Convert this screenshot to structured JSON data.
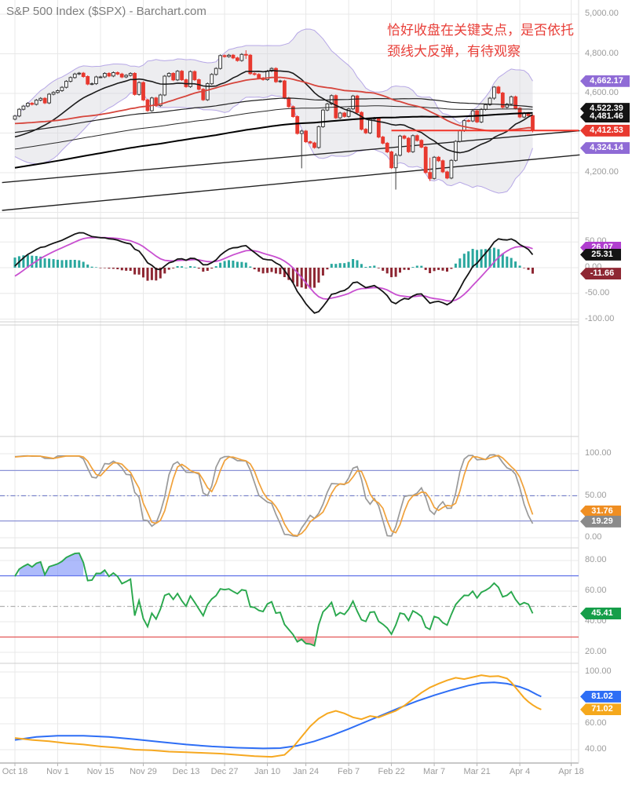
{
  "title": "S&P 500 Index ($SPX) - Barchart.com",
  "annotation": {
    "line1": "恰好收盘在关键支点，是否依托",
    "line2": "颈线大反弹，有待观察",
    "color": "#e8403a"
  },
  "x_axis": {
    "ticks": [
      {
        "label": "Oct 18",
        "i": 0
      },
      {
        "label": "Nov 1",
        "i": 10
      },
      {
        "label": "Nov 15",
        "i": 20
      },
      {
        "label": "Nov 29",
        "i": 30
      },
      {
        "label": "Dec 13",
        "i": 40
      },
      {
        "label": "Dec 27",
        "i": 49
      },
      {
        "label": "Jan 10",
        "i": 59
      },
      {
        "label": "Jan 24",
        "i": 68
      },
      {
        "label": "Feb 7",
        "i": 78
      },
      {
        "label": "Feb 22",
        "i": 88
      },
      {
        "label": "Mar 7",
        "i": 98
      },
      {
        "label": "Mar 21",
        "i": 108
      },
      {
        "label": "Apr 4",
        "i": 118
      },
      {
        "label": "Apr 18",
        "i": 130
      }
    ]
  },
  "chart_data": {
    "type": "multi-panel-technical-chart",
    "symbol": "$SPX",
    "panels": {
      "price": {
        "type": "candlestick",
        "y_ticks": [
          {
            "v": 5000,
            "label": "5,000.00"
          },
          {
            "v": 4800,
            "label": "4,800.00"
          },
          {
            "v": 4600,
            "label": "4,600.00"
          },
          {
            "v": 4200,
            "label": "4,200.00"
          }
        ],
        "grid_values": [
          5000,
          4800,
          4600,
          4400,
          4200,
          4000
        ],
        "closes": [
          4486,
          4520,
          4536,
          4550,
          4545,
          4566,
          4575,
          4552,
          4596,
          4605,
          4614,
          4631,
          4661,
          4680,
          4698,
          4702,
          4685,
          4647,
          4649,
          4683,
          4683,
          4701,
          4688,
          4705,
          4698,
          4683,
          4691,
          4701,
          4595,
          4655,
          4567,
          4513,
          4577,
          4538,
          4592,
          4687,
          4701,
          4668,
          4712,
          4669,
          4634,
          4710,
          4669,
          4621,
          4568,
          4649,
          4696,
          4726,
          4791,
          4786,
          4793,
          4779,
          4766,
          4797,
          4793,
          4700,
          4696,
          4677,
          4670,
          4713,
          4726,
          4659,
          4663,
          4577,
          4533,
          4483,
          4398,
          4410,
          4356,
          4350,
          4327,
          4432,
          4516,
          4547,
          4589,
          4477,
          4501,
          4484,
          4522,
          4587,
          4504,
          4419,
          4401,
          4471,
          4475,
          4380,
          4349,
          4305,
          4225,
          4288,
          4385,
          4374,
          4306,
          4387,
          4363,
          4329,
          4201,
          4171,
          4278,
          4260,
          4204,
          4173,
          4262,
          4358,
          4412,
          4463,
          4461,
          4512,
          4456,
          4520,
          4543,
          4576,
          4632,
          4602,
          4530,
          4546,
          4583,
          4525,
          4481,
          4500,
          4488,
          4412.53
        ],
        "last_close": 4412.53,
        "special_hl": {
          "54": [
            4818,
            4774
          ],
          "67": [
            4417,
            4222
          ],
          "89": [
            4299,
            4115
          ],
          "97": [
            4276,
            4158
          ],
          "112": [
            4637,
            4568
          ],
          "121": [
            4494,
            4404
          ]
        },
        "seed_history": [
          {
            "days": 180,
            "from": 3790,
            "to": 4540
          },
          {
            "days": 22,
            "from": 4540,
            "to": 4305
          },
          {
            "days": 8,
            "from": 4305,
            "to": 4470
          }
        ],
        "overlays": {
          "sma_periods": [
            20,
            100,
            150,
            200
          ],
          "sma_red_period": 50,
          "bollinger": {
            "period": 20,
            "stdev": 2,
            "band_fill": "#d8d8de",
            "band_stroke": "#b6a7e6"
          },
          "trendlines": [
            {
              "from": [
                -3,
                4150
              ],
              "to": [
                132,
                4412
              ]
            },
            {
              "from": [
                -3,
                4010
              ],
              "to": [
                132,
                4290
              ]
            }
          ],
          "support_line": {
            "value": 4412.53,
            "from_i": 88,
            "color": "#f23428"
          }
        },
        "colors": {
          "up_body": "#ffffff",
          "up_stroke": "#3a3a3a",
          "down": "#e8392f",
          "ma_black": "#1b1b1b",
          "ma_red": "#d6453c"
        },
        "tags": [
          {
            "label": "4,662.17",
            "v": 4662.17,
            "color": "#8f6bd6"
          },
          {
            "label": "4,522.39",
            "v": 4522.39,
            "color": "#141414"
          },
          {
            "label": "4,481.46",
            "v": 4481.46,
            "color": "#141414"
          },
          {
            "label": "4,412.53",
            "v": 4412.53,
            "color": "#e8392f"
          },
          {
            "label": "4,324.14",
            "v": 4324.14,
            "color": "#8f6bd6"
          }
        ]
      },
      "macd": {
        "type": "macd",
        "params": {
          "fast": 12,
          "slow": 26,
          "signal": 9
        },
        "y_ticks": [
          {
            "v": 50,
            "label": "50.00"
          },
          {
            "v": 0,
            "label": "0.00"
          },
          {
            "v": -50,
            "label": "-50.00"
          },
          {
            "v": -100,
            "label": "-100.00"
          }
        ],
        "colors": {
          "macd": "#141414",
          "signal": "#c84fd0",
          "hist_pos": "#2aa79e",
          "hist_neg": "#8e2733"
        },
        "tags": [
          {
            "label": "26.07",
            "v": 26.07,
            "color": "#b03ecf"
          },
          {
            "label": "25.31",
            "v": 25.31,
            "color": "#141414"
          },
          {
            "label": "-11.66",
            "v": -11.66,
            "color": "#8e2733"
          }
        ]
      },
      "stochastic": {
        "type": "stochastic",
        "params": {
          "k": 14,
          "smooth": 3,
          "d": 3
        },
        "y_ticks": [
          {
            "v": 100,
            "label": "100.00"
          },
          {
            "v": 50,
            "label": "50.00"
          },
          {
            "v": 0,
            "label": "0.00"
          }
        ],
        "ref_lines": [
          {
            "v": 80,
            "style": "solid",
            "color": "#8b93d6"
          },
          {
            "v": 50,
            "style": "dashdot",
            "color": "#7d86cc"
          },
          {
            "v": 20,
            "style": "solid",
            "color": "#8b93d6"
          }
        ],
        "colors": {
          "k_line": "#9a9a9a",
          "d_line": "#f0a13a"
        },
        "tags": [
          {
            "label": "31.76",
            "v": 31.76,
            "color": "#ef8e22"
          },
          {
            "label": "19.29",
            "v": 19.29,
            "color": "#8a8a8a"
          }
        ]
      },
      "rsi": {
        "type": "rsi",
        "params": {
          "period": 14
        },
        "y_ticks": [
          {
            "v": 80,
            "label": "80.00"
          },
          {
            "v": 60,
            "label": "60.00"
          },
          {
            "v": 40,
            "label": "40.00"
          },
          {
            "v": 20,
            "label": "20.00"
          }
        ],
        "ref_lines": [
          {
            "v": 70,
            "style": "solid",
            "color": "#5e6fe8"
          },
          {
            "v": 50,
            "style": "dashdot",
            "color": "#b0b0b0"
          },
          {
            "v": 30,
            "style": "solid",
            "color": "#e25555"
          }
        ],
        "colors": {
          "line": "#29a84d",
          "overbought_fill": "#6b83f7",
          "oversold_fill": "#ef4d5a"
        },
        "tags": [
          {
            "label": "45.41",
            "v": 45.41,
            "color": "#159e49"
          }
        ]
      },
      "slow_lines": {
        "type": "line",
        "y_ticks": [
          {
            "v": 100,
            "label": "100.00"
          },
          {
            "v": 60,
            "label": "60.00"
          },
          {
            "v": 40,
            "label": "40.00"
          }
        ],
        "grid_values": [
          100,
          80,
          60,
          40
        ],
        "series": [
          {
            "name": "blue",
            "color": "#2e6ef5",
            "points": [
              [
                0,
                47.5
              ],
              [
                5,
                49.8
              ],
              [
                10,
                50.8
              ],
              [
                16,
                50.8
              ],
              [
                22,
                49.8
              ],
              [
                28,
                48
              ],
              [
                34,
                46
              ],
              [
                40,
                44
              ],
              [
                46,
                42.5
              ],
              [
                52,
                41.5
              ],
              [
                58,
                41
              ],
              [
                62,
                41.2
              ],
              [
                66,
                43
              ],
              [
                70,
                46.5
              ],
              [
                74,
                51
              ],
              [
                78,
                56
              ],
              [
                82,
                61.5
              ],
              [
                86,
                67
              ],
              [
                90,
                72.5
              ],
              [
                94,
                77.5
              ],
              [
                98,
                82
              ],
              [
                102,
                86
              ],
              [
                106,
                89.5
              ],
              [
                109,
                91.5
              ],
              [
                112,
                92
              ],
              [
                115,
                91
              ],
              [
                118,
                88.5
              ],
              [
                120,
                86
              ],
              [
                122,
                82.5
              ],
              [
                123,
                81
              ]
            ]
          },
          {
            "name": "orange",
            "color": "#f6a820",
            "points": [
              [
                0,
                49
              ],
              [
                4,
                47.5
              ],
              [
                8,
                46.5
              ],
              [
                12,
                45
              ],
              [
                16,
                44
              ],
              [
                20,
                42.5
              ],
              [
                24,
                41.5
              ],
              [
                28,
                40
              ],
              [
                32,
                39.5
              ],
              [
                36,
                38.5
              ],
              [
                40,
                38
              ],
              [
                44,
                37.5
              ],
              [
                48,
                37
              ],
              [
                52,
                36
              ],
              [
                56,
                35
              ],
              [
                60,
                34.5
              ],
              [
                63,
                36
              ],
              [
                65,
                42
              ],
              [
                67,
                50
              ],
              [
                69,
                58
              ],
              [
                71,
                64
              ],
              [
                73,
                68
              ],
              [
                75,
                70
              ],
              [
                77,
                68
              ],
              [
                79,
                65
              ],
              [
                81,
                63.5
              ],
              [
                83,
                66
              ],
              [
                85,
                65
              ],
              [
                87,
                67.5
              ],
              [
                89,
                70
              ],
              [
                91,
                74
              ],
              [
                93,
                79
              ],
              [
                95,
                84
              ],
              [
                97,
                88
              ],
              [
                99,
                91
              ],
              [
                101,
                93.5
              ],
              [
                103,
                95.5
              ],
              [
                105,
                94.5
              ],
              [
                107,
                96
              ],
              [
                109,
                97.5
              ],
              [
                111,
                96.5
              ],
              [
                113,
                96.8
              ],
              [
                115,
                95
              ],
              [
                116,
                92
              ],
              [
                117,
                88
              ],
              [
                118,
                84
              ],
              [
                119,
                80
              ],
              [
                120,
                77
              ],
              [
                121,
                74.5
              ],
              [
                122,
                72.5
              ],
              [
                123,
                71
              ]
            ]
          }
        ],
        "tags": [
          {
            "label": "81.02",
            "v": 81.02,
            "color": "#2e6ef5"
          },
          {
            "label": "71.02",
            "v": 71.02,
            "color": "#f5a81c"
          }
        ]
      }
    }
  }
}
